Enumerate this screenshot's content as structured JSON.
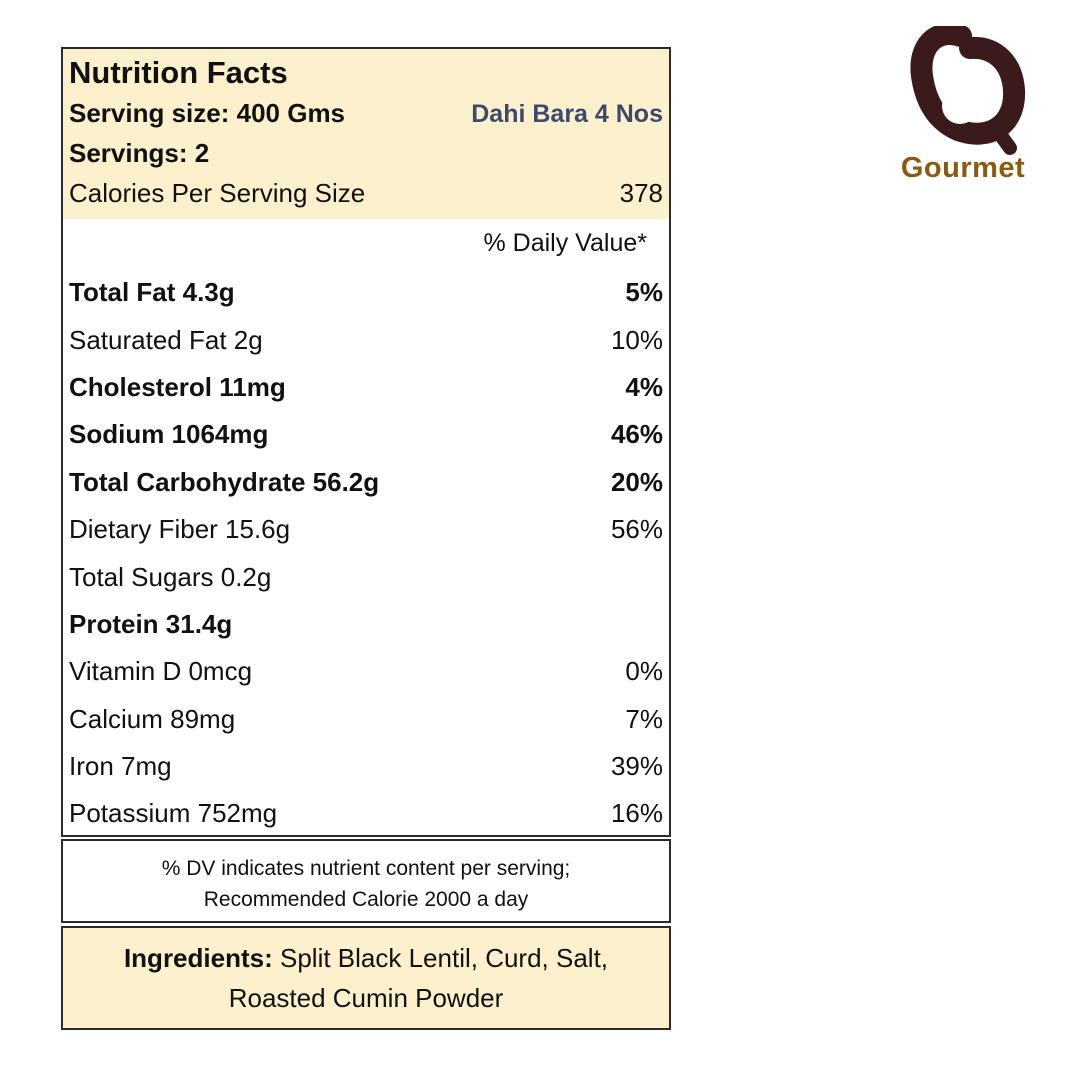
{
  "label": {
    "title": "Nutrition Facts",
    "serving_size": "Serving size: 400 Gms",
    "dish": "Dahi Bara 4 Nos",
    "servings": "Servings: 2",
    "calories_label": "Calories Per Serving Size",
    "calories_value": "378",
    "dv_header": "% Daily Value*",
    "nutrients": [
      {
        "name": "Total Fat 4.3g",
        "dv": "5%"
      },
      {
        "name": "Saturated Fat 2g",
        "dv": "10%"
      },
      {
        "name": "Cholesterol 11mg",
        "dv": "4%"
      },
      {
        "name": "Sodium 1064mg",
        "dv": "46%"
      },
      {
        "name": "Total Carbohydrate 56.2g",
        "dv": "20%"
      },
      {
        "name": "Dietary Fiber 15.6g",
        "dv": "56%"
      },
      {
        "name": "Total Sugars 0.2g",
        "dv": ""
      },
      {
        "name": "Protein 31.4g",
        "dv": ""
      },
      {
        "name": "Vitamin D 0mcg",
        "dv": "0%"
      },
      {
        "name": "Calcium 89mg",
        "dv": "7%"
      },
      {
        "name": "Iron 7mg",
        "dv": "39%"
      },
      {
        "name": "Potassium 752mg",
        "dv": "16%"
      }
    ]
  },
  "note": {
    "line1": "% DV indicates nutrient content per serving;",
    "line2": "Recommended Calorie 2000 a day"
  },
  "ingredients": {
    "label": "Ingredients:",
    "line1": "Split Black Lentil, Curd, Salt,",
    "line2": "Roasted Cumin Powder"
  },
  "logo": {
    "text": "Gourmet",
    "mark_color": "#3a1a1a",
    "text_color": "#8a5a0e",
    "accent_color": "#fdf0cc"
  }
}
